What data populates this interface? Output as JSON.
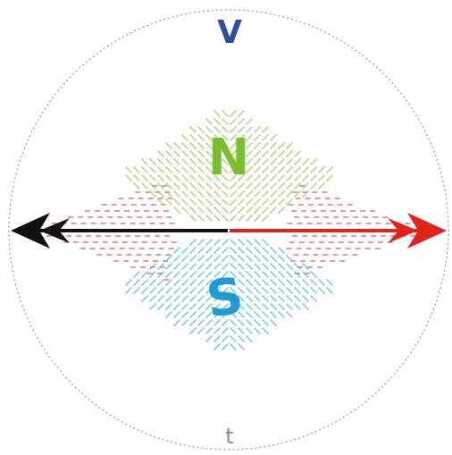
{
  "labels": {
    "top": "V",
    "bottom": "t",
    "north": "N",
    "south": "S"
  },
  "colors": {
    "background": "#ffffff",
    "circle": "#9a9a9a",
    "top_label": "#2f4f9a",
    "bottom_label": "#8a8a8a",
    "north": "#7cbf2e",
    "south": "#1f9bd4",
    "field_red": "#e0463c",
    "field_green": "#93c95a",
    "field_cyan": "#49b8d8",
    "arrow_left": "#111111",
    "arrow_right": "#e2231a"
  }
}
